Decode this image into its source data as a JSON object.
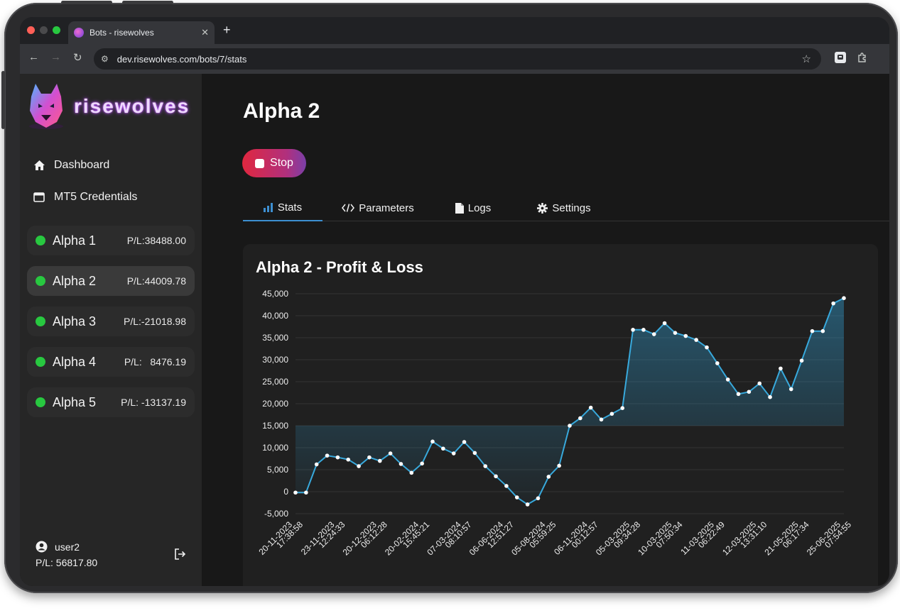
{
  "browser": {
    "tab_title": "Bots - risewolves",
    "url": "dev.risewolves.com/bots/7/stats"
  },
  "brand": {
    "name": "risewolves"
  },
  "nav": [
    {
      "label": "Dashboard",
      "icon": "home-icon"
    },
    {
      "label": "MT5 Credentials",
      "icon": "window-icon"
    }
  ],
  "bots": [
    {
      "name": "Alpha 1",
      "pl": "P/L:38488.00",
      "status": "running",
      "active": false
    },
    {
      "name": "Alpha 2",
      "pl": "P/L:44009.78",
      "status": "running",
      "active": true
    },
    {
      "name": "Alpha 3",
      "pl": "P/L:-21018.98",
      "status": "running",
      "active": false
    },
    {
      "name": "Alpha 4",
      "pl": "P/L:   8476.19",
      "status": "running",
      "active": false
    },
    {
      "name": "Alpha 5",
      "pl": "P/L: -13137.19",
      "status": "running",
      "active": false
    }
  ],
  "user": {
    "name": "user2",
    "pl": "P/L: 56817.80"
  },
  "page": {
    "title": "Alpha 2",
    "stop_label": "Stop"
  },
  "tabs": [
    {
      "label": "Stats",
      "icon": "bar-chart-icon",
      "active": true
    },
    {
      "label": "Parameters",
      "icon": "code-icon",
      "active": false
    },
    {
      "label": "Logs",
      "icon": "file-icon",
      "active": false
    },
    {
      "label": "Settings",
      "icon": "gear-icon",
      "active": false
    }
  ],
  "colors": {
    "accent": "#3d8fd1",
    "line": "#38a9dc",
    "status_green": "#28c840",
    "stop_red": "#e0273f"
  },
  "chart_data": {
    "type": "area",
    "title": "Alpha 2 - Profit & Loss",
    "ylim": [
      -5000,
      45000
    ],
    "yticks": [
      "45,000",
      "40,000",
      "35,000",
      "30,000",
      "25,000",
      "20,000",
      "15,000",
      "10,000",
      "5,000",
      "0",
      "-5,000"
    ],
    "xtick_labels": [
      [
        "20-11-2023",
        "17:38:58"
      ],
      [
        "23-11-2023",
        "12:24:33"
      ],
      [
        "20-12-2023",
        "06:12:28"
      ],
      [
        "20-02-2024",
        "15:45:21"
      ],
      [
        "07-03-2024",
        "08:10:57"
      ],
      [
        "06-06-2024",
        "12:51:27"
      ],
      [
        "05-08-2024",
        "05:59:25"
      ],
      [
        "06-11-2024",
        "00:12:57"
      ],
      [
        "05-03-2025",
        "09:34:28"
      ],
      [
        "10-03-2025",
        "07:50:34"
      ],
      [
        "11-03-2025",
        "06:22:49"
      ],
      [
        "12-03-2025",
        "13:31:10"
      ],
      [
        "21-05-2025",
        "06:17:34"
      ],
      [
        "25-06-2025",
        "07:54:55"
      ]
    ],
    "values": [
      -200,
      -200,
      6200,
      8200,
      7800,
      7300,
      5800,
      7800,
      7000,
      8700,
      6300,
      4300,
      6400,
      11400,
      9800,
      8700,
      11300,
      8800,
      5800,
      3500,
      1300,
      -1300,
      -2900,
      -1500,
      3400,
      5900,
      15000,
      16700,
      19100,
      16400,
      17700,
      19000,
      36800,
      36800,
      35800,
      38300,
      36100,
      35400,
      34500,
      32800,
      29200,
      25500,
      22200,
      22700,
      24600,
      21500,
      28000,
      23300,
      29800,
      36500,
      36500,
      42800,
      44000
    ],
    "grid": true
  }
}
